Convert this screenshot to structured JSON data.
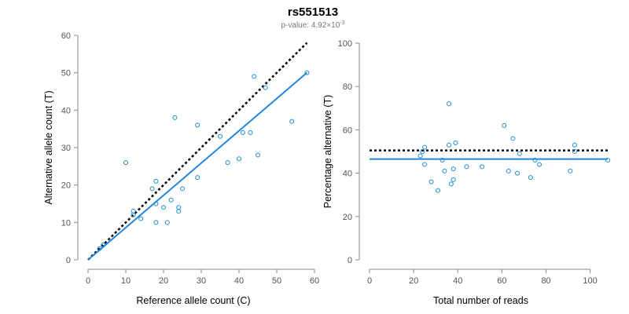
{
  "title": "rs551513",
  "subtitle": {
    "prefix": "p-value: 4.92×10",
    "exponent": "-3"
  },
  "colors": {
    "points": "#1a8bd0",
    "fit_line": "#2288dd",
    "reference_line": "#000000",
    "axis": "#888888"
  },
  "chart_data": [
    {
      "type": "scatter",
      "xlabel": "Reference allele count (C)",
      "ylabel": "Alternative allele count (T)",
      "xlim": [
        0,
        60
      ],
      "ylim": [
        0,
        60
      ],
      "xticks": [
        0,
        10,
        20,
        30,
        40,
        50,
        60
      ],
      "yticks": [
        0,
        10,
        20,
        30,
        40,
        50,
        60
      ],
      "grid": false,
      "points": [
        {
          "x": 3,
          "y": 3
        },
        {
          "x": 4,
          "y": 4
        },
        {
          "x": 10,
          "y": 26
        },
        {
          "x": 12,
          "y": 12
        },
        {
          "x": 12,
          "y": 13
        },
        {
          "x": 14,
          "y": 11
        },
        {
          "x": 17,
          "y": 19
        },
        {
          "x": 18,
          "y": 21
        },
        {
          "x": 18,
          "y": 15
        },
        {
          "x": 18,
          "y": 10
        },
        {
          "x": 20,
          "y": 14
        },
        {
          "x": 21,
          "y": 10
        },
        {
          "x": 22,
          "y": 16
        },
        {
          "x": 23,
          "y": 38
        },
        {
          "x": 24,
          "y": 14
        },
        {
          "x": 24,
          "y": 13
        },
        {
          "x": 25,
          "y": 19
        },
        {
          "x": 29,
          "y": 36
        },
        {
          "x": 29,
          "y": 22
        },
        {
          "x": 35,
          "y": 33
        },
        {
          "x": 37,
          "y": 26
        },
        {
          "x": 40,
          "y": 27
        },
        {
          "x": 41,
          "y": 34
        },
        {
          "x": 43,
          "y": 34
        },
        {
          "x": 44,
          "y": 49
        },
        {
          "x": 45,
          "y": 28
        },
        {
          "x": 47,
          "y": 46
        },
        {
          "x": 54,
          "y": 37
        },
        {
          "x": 58,
          "y": 50
        }
      ],
      "fit_line": {
        "x": [
          0,
          58
        ],
        "y": [
          0,
          50
        ]
      },
      "reference_line": {
        "x": [
          0,
          58
        ],
        "y": [
          0,
          58
        ]
      }
    },
    {
      "type": "scatter",
      "xlabel": "Total number of reads",
      "ylabel": "Percentage alternative (T)",
      "xlim": [
        0,
        108
      ],
      "ylim": [
        0,
        100
      ],
      "xticks": [
        0,
        20,
        40,
        60,
        80,
        100
      ],
      "yticks": [
        0,
        20,
        40,
        60,
        80,
        100
      ],
      "grid": false,
      "points": [
        {
          "x": 23,
          "y": 48
        },
        {
          "x": 24,
          "y": 50
        },
        {
          "x": 25,
          "y": 52
        },
        {
          "x": 25,
          "y": 44
        },
        {
          "x": 28,
          "y": 36
        },
        {
          "x": 31,
          "y": 32
        },
        {
          "x": 33,
          "y": 46
        },
        {
          "x": 34,
          "y": 41
        },
        {
          "x": 36,
          "y": 72
        },
        {
          "x": 36,
          "y": 53
        },
        {
          "x": 37,
          "y": 35
        },
        {
          "x": 38,
          "y": 37
        },
        {
          "x": 38,
          "y": 42
        },
        {
          "x": 39,
          "y": 54
        },
        {
          "x": 44,
          "y": 43
        },
        {
          "x": 51,
          "y": 43
        },
        {
          "x": 61,
          "y": 62
        },
        {
          "x": 63,
          "y": 41
        },
        {
          "x": 65,
          "y": 56
        },
        {
          "x": 67,
          "y": 40
        },
        {
          "x": 68,
          "y": 49
        },
        {
          "x": 73,
          "y": 38
        },
        {
          "x": 75,
          "y": 46
        },
        {
          "x": 77,
          "y": 44
        },
        {
          "x": 91,
          "y": 41
        },
        {
          "x": 93,
          "y": 53
        },
        {
          "x": 93,
          "y": 50
        },
        {
          "x": 108,
          "y": 46
        }
      ],
      "fit_line": {
        "x": [
          0,
          108
        ],
        "y": [
          46.5,
          46.5
        ]
      },
      "reference_line": {
        "x": [
          0,
          108
        ],
        "y": [
          50.5,
          50.5
        ]
      }
    }
  ]
}
